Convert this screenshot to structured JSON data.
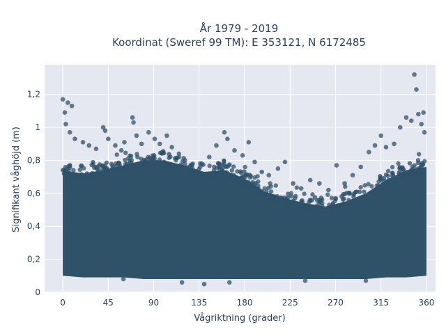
{
  "chart_data": {
    "type": "scatter",
    "title": "År 1979 - 2019",
    "subtitle": "Koordinat (Sweref 99 TM): E 353121, N 6172485",
    "xlabel": "Vågriktning (grader)",
    "ylabel": "Signifikant våghöjd (m)",
    "xlim": [
      -18,
      369
    ],
    "ylim": [
      0,
      1.38
    ],
    "x_ticks": [
      0,
      45,
      90,
      135,
      180,
      225,
      270,
      315,
      360
    ],
    "x_tick_labels": [
      "0",
      "45",
      "90",
      "135",
      "180",
      "225",
      "270",
      "315",
      "360"
    ],
    "y_ticks": [
      0,
      0.2,
      0.4,
      0.6,
      0.8,
      1.0,
      1.2
    ],
    "y_tick_labels": [
      "0",
      "0,2",
      "0,4",
      "0,6",
      "0,8",
      "1",
      "1,2"
    ],
    "grid": true,
    "legend": "none",
    "marker_color": "#2f5269",
    "plot_bg": "#e5e8f0",
    "points": [
      {
        "x": 0,
        "y": 1.17
      },
      {
        "x": 2,
        "y": 1.09
      },
      {
        "x": 5,
        "y": 1.15
      },
      {
        "x": 9,
        "y": 1.13
      },
      {
        "x": 3,
        "y": 1.02
      },
      {
        "x": 7,
        "y": 0.97
      },
      {
        "x": 12,
        "y": 0.93
      },
      {
        "x": 20,
        "y": 0.91
      },
      {
        "x": 26,
        "y": 0.89
      },
      {
        "x": 33,
        "y": 0.87
      },
      {
        "x": 40,
        "y": 1.0
      },
      {
        "x": 42,
        "y": 0.98
      },
      {
        "x": 45,
        "y": 0.93
      },
      {
        "x": 52,
        "y": 0.89
      },
      {
        "x": 58,
        "y": 0.86
      },
      {
        "x": 61,
        "y": 0.91
      },
      {
        "x": 69,
        "y": 1.06
      },
      {
        "x": 70,
        "y": 1.03
      },
      {
        "x": 73,
        "y": 0.95
      },
      {
        "x": 78,
        "y": 0.9
      },
      {
        "x": 85,
        "y": 0.97
      },
      {
        "x": 91,
        "y": 0.93
      },
      {
        "x": 96,
        "y": 0.9
      },
      {
        "x": 103,
        "y": 0.95
      },
      {
        "x": 108,
        "y": 0.88
      },
      {
        "x": 115,
        "y": 0.84
      },
      {
        "x": 121,
        "y": 0.8
      },
      {
        "x": 128,
        "y": 0.77
      },
      {
        "x": 136,
        "y": 0.76
      },
      {
        "x": 145,
        "y": 0.82
      },
      {
        "x": 152,
        "y": 0.89
      },
      {
        "x": 160,
        "y": 0.97
      },
      {
        "x": 163,
        "y": 0.93
      },
      {
        "x": 170,
        "y": 0.86
      },
      {
        "x": 178,
        "y": 0.83
      },
      {
        "x": 184,
        "y": 0.91
      },
      {
        "x": 190,
        "y": 0.79
      },
      {
        "x": 197,
        "y": 0.73
      },
      {
        "x": 204,
        "y": 0.71
      },
      {
        "x": 213,
        "y": 0.75
      },
      {
        "x": 220,
        "y": 0.79
      },
      {
        "x": 228,
        "y": 0.66
      },
      {
        "x": 236,
        "y": 0.63
      },
      {
        "x": 245,
        "y": 0.68
      },
      {
        "x": 254,
        "y": 0.66
      },
      {
        "x": 263,
        "y": 0.62
      },
      {
        "x": 271,
        "y": 0.77
      },
      {
        "x": 279,
        "y": 0.66
      },
      {
        "x": 287,
        "y": 0.71
      },
      {
        "x": 295,
        "y": 0.76
      },
      {
        "x": 303,
        "y": 0.85
      },
      {
        "x": 309,
        "y": 0.89
      },
      {
        "x": 315,
        "y": 0.95
      },
      {
        "x": 320,
        "y": 0.88
      },
      {
        "x": 328,
        "y": 0.9
      },
      {
        "x": 334,
        "y": 1.0
      },
      {
        "x": 340,
        "y": 1.06
      },
      {
        "x": 345,
        "y": 1.04
      },
      {
        "x": 348,
        "y": 1.32
      },
      {
        "x": 350,
        "y": 1.23
      },
      {
        "x": 352,
        "y": 1.08
      },
      {
        "x": 355,
        "y": 1.02
      },
      {
        "x": 357,
        "y": 1.09
      },
      {
        "x": 358,
        "y": 0.97
      },
      {
        "x": 140,
        "y": 0.05
      },
      {
        "x": 165,
        "y": 0.06
      },
      {
        "x": 118,
        "y": 0.06
      },
      {
        "x": 240,
        "y": 0.07
      },
      {
        "x": 300,
        "y": 0.07
      },
      {
        "x": 60,
        "y": 0.08
      }
    ],
    "density_band": {
      "x": [
        0,
        20,
        40,
        60,
        80,
        100,
        120,
        140,
        160,
        180,
        200,
        220,
        240,
        260,
        280,
        300,
        320,
        340,
        360
      ],
      "y_low": [
        0.1,
        0.09,
        0.09,
        0.09,
        0.08,
        0.08,
        0.08,
        0.08,
        0.08,
        0.08,
        0.08,
        0.08,
        0.08,
        0.08,
        0.08,
        0.08,
        0.09,
        0.09,
        0.1
      ],
      "y_high": [
        0.74,
        0.72,
        0.74,
        0.77,
        0.8,
        0.8,
        0.77,
        0.73,
        0.74,
        0.69,
        0.61,
        0.57,
        0.54,
        0.52,
        0.55,
        0.6,
        0.68,
        0.74,
        0.76
      ]
    }
  }
}
